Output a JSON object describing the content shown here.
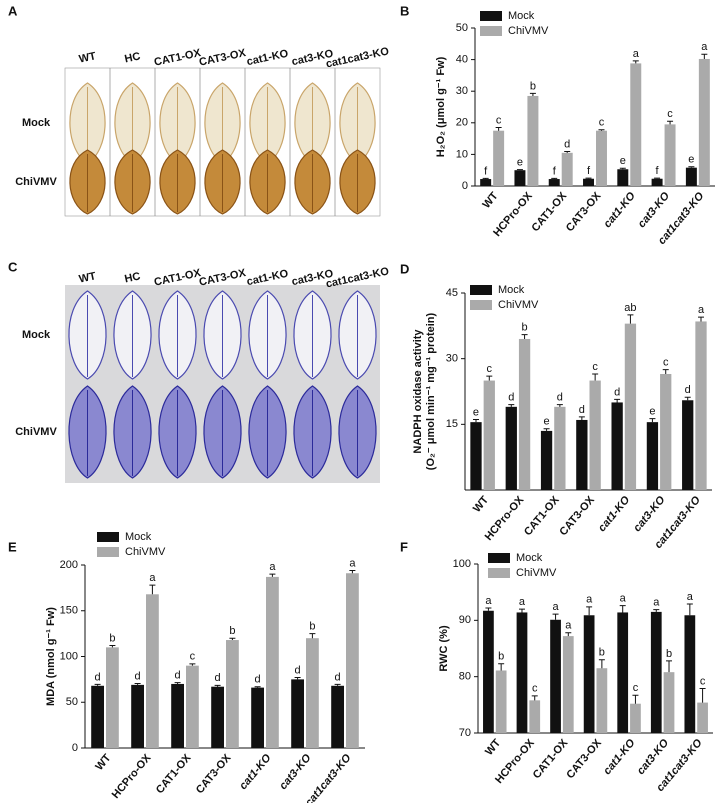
{
  "photo_panels": [
    {
      "label": "A",
      "columns": [
        "WT",
        "HC",
        "CAT1-OX",
        "CAT3-OX",
        "cat1-KO",
        "cat3-KO",
        "cat1cat3-KO"
      ],
      "rows": [
        "Mock",
        "ChiVMV"
      ]
    },
    {
      "label": "C",
      "columns": [
        "WT",
        "HC",
        "CAT1-OX",
        "CAT3-OX",
        "cat1-KO",
        "cat3-KO",
        "cat1cat3-KO"
      ],
      "rows": [
        "Mock",
        "ChiVMV"
      ]
    }
  ],
  "chart_data": [
    {
      "type": "bar",
      "panel_label": "B",
      "y_label": [
        "H₂O₂ (μmol g⁻¹ Fw)"
      ],
      "categories": [
        "WT",
        "HCPro-OX",
        "CAT1-OX",
        "CAT3-OX",
        "cat1-KO",
        "cat3-KO",
        "cat1cat3-KO"
      ],
      "series": [
        {
          "name": "Mock",
          "color": "#111111",
          "values": [
            2.2,
            5,
            2.2,
            2.3,
            5.3,
            2.3,
            5.8
          ],
          "errors": [
            0.2,
            0.2,
            0.2,
            0.2,
            0.3,
            0.2,
            0.3
          ],
          "letters": [
            "f",
            "e",
            "f",
            "f",
            "e",
            "f",
            "e"
          ]
        },
        {
          "name": "ChiVMV",
          "color": "#aaaaaa",
          "values": [
            17.5,
            28.5,
            10.5,
            17.5,
            38.8,
            19.5,
            40.2
          ],
          "errors": [
            1,
            0.8,
            0.4,
            0.3,
            0.8,
            1,
            1.5
          ],
          "letters": [
            "c",
            "b",
            "d",
            "c",
            "a",
            "c",
            "a"
          ]
        }
      ],
      "ylim": [
        0,
        50
      ],
      "yticks": [
        0,
        10,
        20,
        30,
        40,
        50
      ]
    },
    {
      "type": "bar",
      "panel_label": "D",
      "y_label": [
        "NADPH oxidase activity",
        "(O₂⁻ μmol min⁻¹ mg⁻¹ protein)"
      ],
      "categories": [
        "WT",
        "HCPro-OX",
        "CAT1-OX",
        "CAT3-OX",
        "cat1-KO",
        "cat3-KO",
        "cat1cat3-KO"
      ],
      "series": [
        {
          "name": "Mock",
          "color": "#111111",
          "values": [
            15.5,
            19,
            13.5,
            16,
            20,
            15.5,
            20.5
          ],
          "errors": [
            0.6,
            0.5,
            0.5,
            0.7,
            0.7,
            0.8,
            0.7
          ],
          "letters": [
            "e",
            "d",
            "e",
            "d",
            "d",
            "e",
            "d"
          ]
        },
        {
          "name": "ChiVMV",
          "color": "#aaaaaa",
          "values": [
            25,
            34.5,
            19,
            25,
            38,
            26.5,
            38.5
          ],
          "errors": [
            1,
            1,
            0.5,
            1.5,
            2,
            1,
            1
          ],
          "letters": [
            "c",
            "b",
            "d",
            "c",
            "ab",
            "c",
            "a"
          ]
        }
      ],
      "ylim": [
        0,
        45
      ],
      "yticks": [
        15,
        30,
        45
      ]
    },
    {
      "type": "bar",
      "panel_label": "E",
      "y_label": [
        "MDA (nmol g⁻¹ Fw)"
      ],
      "categories": [
        "WT",
        "HCPro-OX",
        "CAT1-OX",
        "CAT3-OX",
        "cat1-KO",
        "cat3-KO",
        "cat1cat3-KO"
      ],
      "series": [
        {
          "name": "Mock",
          "color": "#111111",
          "values": [
            68,
            69,
            70,
            67,
            66,
            75,
            68
          ],
          "errors": [
            1.5,
            1.5,
            1.5,
            1.5,
            1,
            2,
            1.5
          ],
          "letters": [
            "d",
            "d",
            "d",
            "d",
            "d",
            "d",
            "d"
          ]
        },
        {
          "name": "ChiVMV",
          "color": "#aaaaaa",
          "values": [
            110,
            168,
            90,
            118,
            187,
            120,
            191
          ],
          "errors": [
            2,
            10,
            2,
            2,
            3,
            5,
            3
          ],
          "letters": [
            "b",
            "a",
            "c",
            "b",
            "a",
            "b",
            "a"
          ]
        }
      ],
      "ylim": [
        0,
        200
      ],
      "yticks": [
        0,
        50,
        100,
        150,
        200
      ]
    },
    {
      "type": "bar",
      "panel_label": "F",
      "y_label": [
        "RWC (%)"
      ],
      "categories": [
        "WT",
        "HCPro-OX",
        "CAT1-OX",
        "CAT3-OX",
        "cat1-KO",
        "cat3-KO",
        "cat1cat3-KO"
      ],
      "series": [
        {
          "name": "Mock",
          "color": "#111111",
          "values": [
            91.7,
            91.4,
            90.1,
            90.9,
            91.4,
            91.5,
            90.9
          ],
          "errors": [
            0.5,
            0.6,
            1,
            1.5,
            1.2,
            0.4,
            2
          ],
          "letters": [
            "a",
            "a",
            "a",
            "a",
            "a",
            "a",
            "a"
          ]
        },
        {
          "name": "ChiVMV",
          "color": "#aaaaaa",
          "values": [
            81.1,
            75.8,
            87.2,
            81.5,
            75.2,
            80.8,
            75.4
          ],
          "errors": [
            1.2,
            0.8,
            0.6,
            1.5,
            1.5,
            2,
            2.5
          ],
          "letters": [
            "b",
            "c",
            "a",
            "b",
            "c",
            "b",
            "c"
          ]
        }
      ],
      "ylim": [
        70,
        100
      ],
      "yticks": [
        70,
        80,
        90,
        100
      ]
    }
  ]
}
